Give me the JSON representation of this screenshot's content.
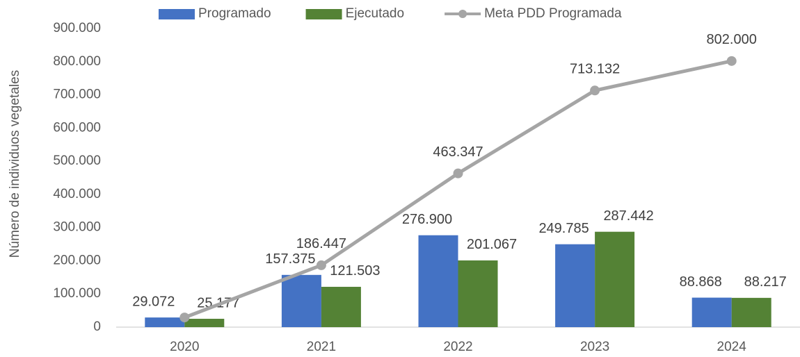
{
  "chart_data": {
    "type": "bar",
    "y_label": "Número de individuos vegetales",
    "categories": [
      "2020",
      "2021",
      "2022",
      "2023",
      "2024"
    ],
    "series": [
      {
        "name": "Programado",
        "color": "#4472c4",
        "values": [
          29072,
          157375,
          276900,
          249785,
          88868
        ],
        "value_labels": [
          "29.072",
          "157.375",
          "276.900",
          "249.785",
          "88.868"
        ]
      },
      {
        "name": "Ejecutado",
        "color": "#548235",
        "values": [
          25177,
          121503,
          201067,
          287442,
          88217
        ],
        "value_labels": [
          "25.177",
          "121.503",
          "201.067",
          "287.442",
          "88.217"
        ]
      },
      {
        "name": "Meta PDD Programada",
        "color": "#a5a5a5",
        "type": "line",
        "values": [
          29072,
          186447,
          463347,
          713132,
          802000
        ],
        "value_labels": [
          null,
          "186.447",
          "463.347",
          "713.132",
          "802.000"
        ]
      }
    ],
    "ylim": [
      0,
      900000
    ],
    "yticks": [
      0,
      {
        "value": 100000,
        "label": "100.000"
      },
      {
        "value": 200000,
        "label": "200.000"
      },
      {
        "value": 300000,
        "label": "300.000"
      },
      {
        "value": 400000,
        "label": "400.000"
      },
      {
        "value": 500000,
        "label": "500.000"
      },
      {
        "value": 600000,
        "label": "600.000"
      },
      {
        "value": 700000,
        "label": "700.000"
      },
      {
        "value": 800000,
        "label": "800.000"
      },
      {
        "value": 900000,
        "label": "900.000"
      }
    ],
    "grid": false,
    "legend": "top"
  }
}
